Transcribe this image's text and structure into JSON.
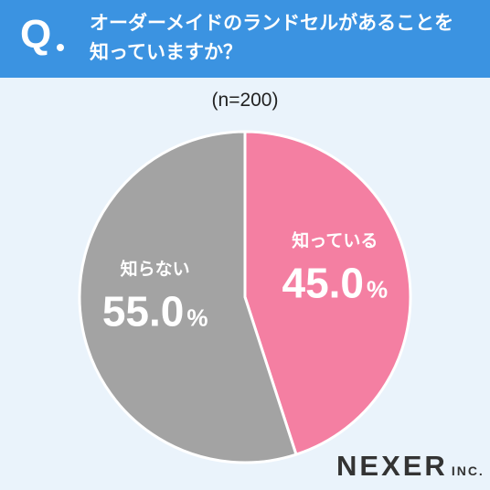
{
  "header": {
    "q_mark": "Q",
    "question_line1": "オーダーメイドのランドセルがあることを",
    "question_line2": "知っていますか？"
  },
  "sample_label": "(n=200)",
  "colors": {
    "header_bg": "#3b93e1",
    "page_bg": "#eaf3fb",
    "slice_know": "#f47fa2",
    "slice_dont_know": "#a3a3a3"
  },
  "logo": {
    "name": "NEXER",
    "suffix": "INC."
  },
  "chart_data": {
    "type": "pie",
    "title": "オーダーメイドのランドセルがあることを知っていますか？",
    "categories": [
      "知っている",
      "知らない"
    ],
    "values": [
      45.0,
      55.0
    ],
    "value_labels": [
      "45.0",
      "55.0"
    ],
    "unit": "%",
    "colors": [
      "#f47fa2",
      "#a3a3a3"
    ],
    "start_angle": "top",
    "direction": "clockwise"
  }
}
